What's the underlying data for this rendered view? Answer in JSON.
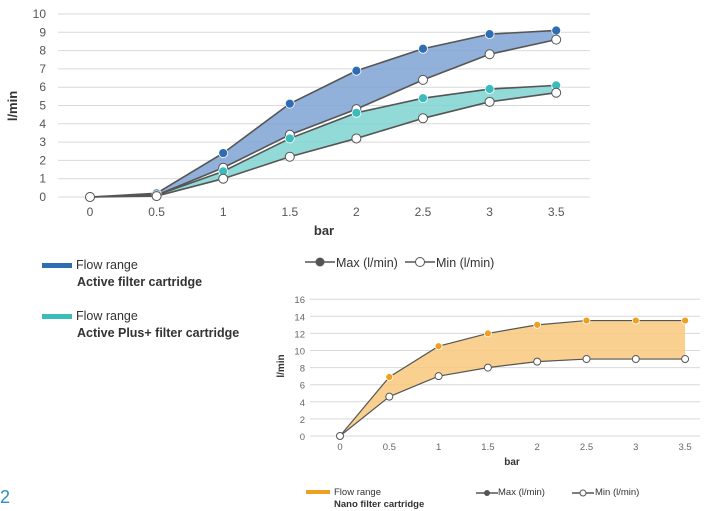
{
  "page_number": "2",
  "chart_data": [
    {
      "type": "area",
      "xlabel": "bar",
      "ylabel": "l/min",
      "x": [
        0,
        0.5,
        1,
        1.5,
        2,
        2.5,
        3,
        3.5
      ],
      "x_tick_labels": [
        "0",
        "0.5",
        "1",
        "1.5",
        "2",
        "2.5",
        "3",
        "3.5"
      ],
      "y_ticks": [
        0,
        1,
        2,
        3,
        4,
        5,
        6,
        7,
        8,
        9,
        10
      ],
      "ylim": [
        0,
        10
      ],
      "grid": true,
      "bands": [
        {
          "legend_line1": "Flow range",
          "legend_line2": "Active filter cartridge",
          "color": "#2e6db4",
          "fill": "#7ea2d4",
          "max": [
            0,
            0.2,
            2.4,
            5.1,
            6.9,
            8.1,
            8.9,
            9.1
          ],
          "min": [
            0,
            0.1,
            1.6,
            3.4,
            4.8,
            6.4,
            7.8,
            8.6
          ]
        },
        {
          "legend_line1": "Flow range",
          "legend_line2": "Active Plus+ filter cartridge",
          "color": "#3bbcbc",
          "fill": "#7fd3d0",
          "max": [
            0,
            0.1,
            1.4,
            3.2,
            4.6,
            5.4,
            5.9,
            6.1
          ],
          "min": [
            0,
            0.05,
            1.0,
            2.2,
            3.2,
            4.3,
            5.2,
            5.7
          ]
        }
      ],
      "max_legend": "Max (l/min)",
      "min_legend": "Min (l/min)"
    },
    {
      "type": "area",
      "xlabel": "bar",
      "ylabel": "l/min",
      "x": [
        0,
        0.5,
        1,
        1.5,
        2,
        2.5,
        3,
        3.5
      ],
      "x_tick_labels": [
        "0",
        "0.5",
        "1",
        "1.5",
        "2",
        "2.5",
        "3",
        "3.5"
      ],
      "y_ticks": [
        0,
        2,
        4,
        6,
        8,
        10,
        12,
        14,
        16
      ],
      "ylim": [
        0,
        16
      ],
      "grid": true,
      "bands": [
        {
          "legend_line1": "Flow range",
          "legend_line2": "Nano filter cartridge",
          "color": "#f0a020",
          "fill": "#f8c87c",
          "max": [
            0,
            6.9,
            10.5,
            12.0,
            13.0,
            13.5,
            13.5,
            13.5
          ],
          "min": [
            0,
            4.6,
            7.0,
            8.0,
            8.7,
            9.0,
            9.0,
            9.0
          ]
        }
      ],
      "max_legend": "Max (l/min)",
      "min_legend": "Min (l/min)"
    }
  ]
}
